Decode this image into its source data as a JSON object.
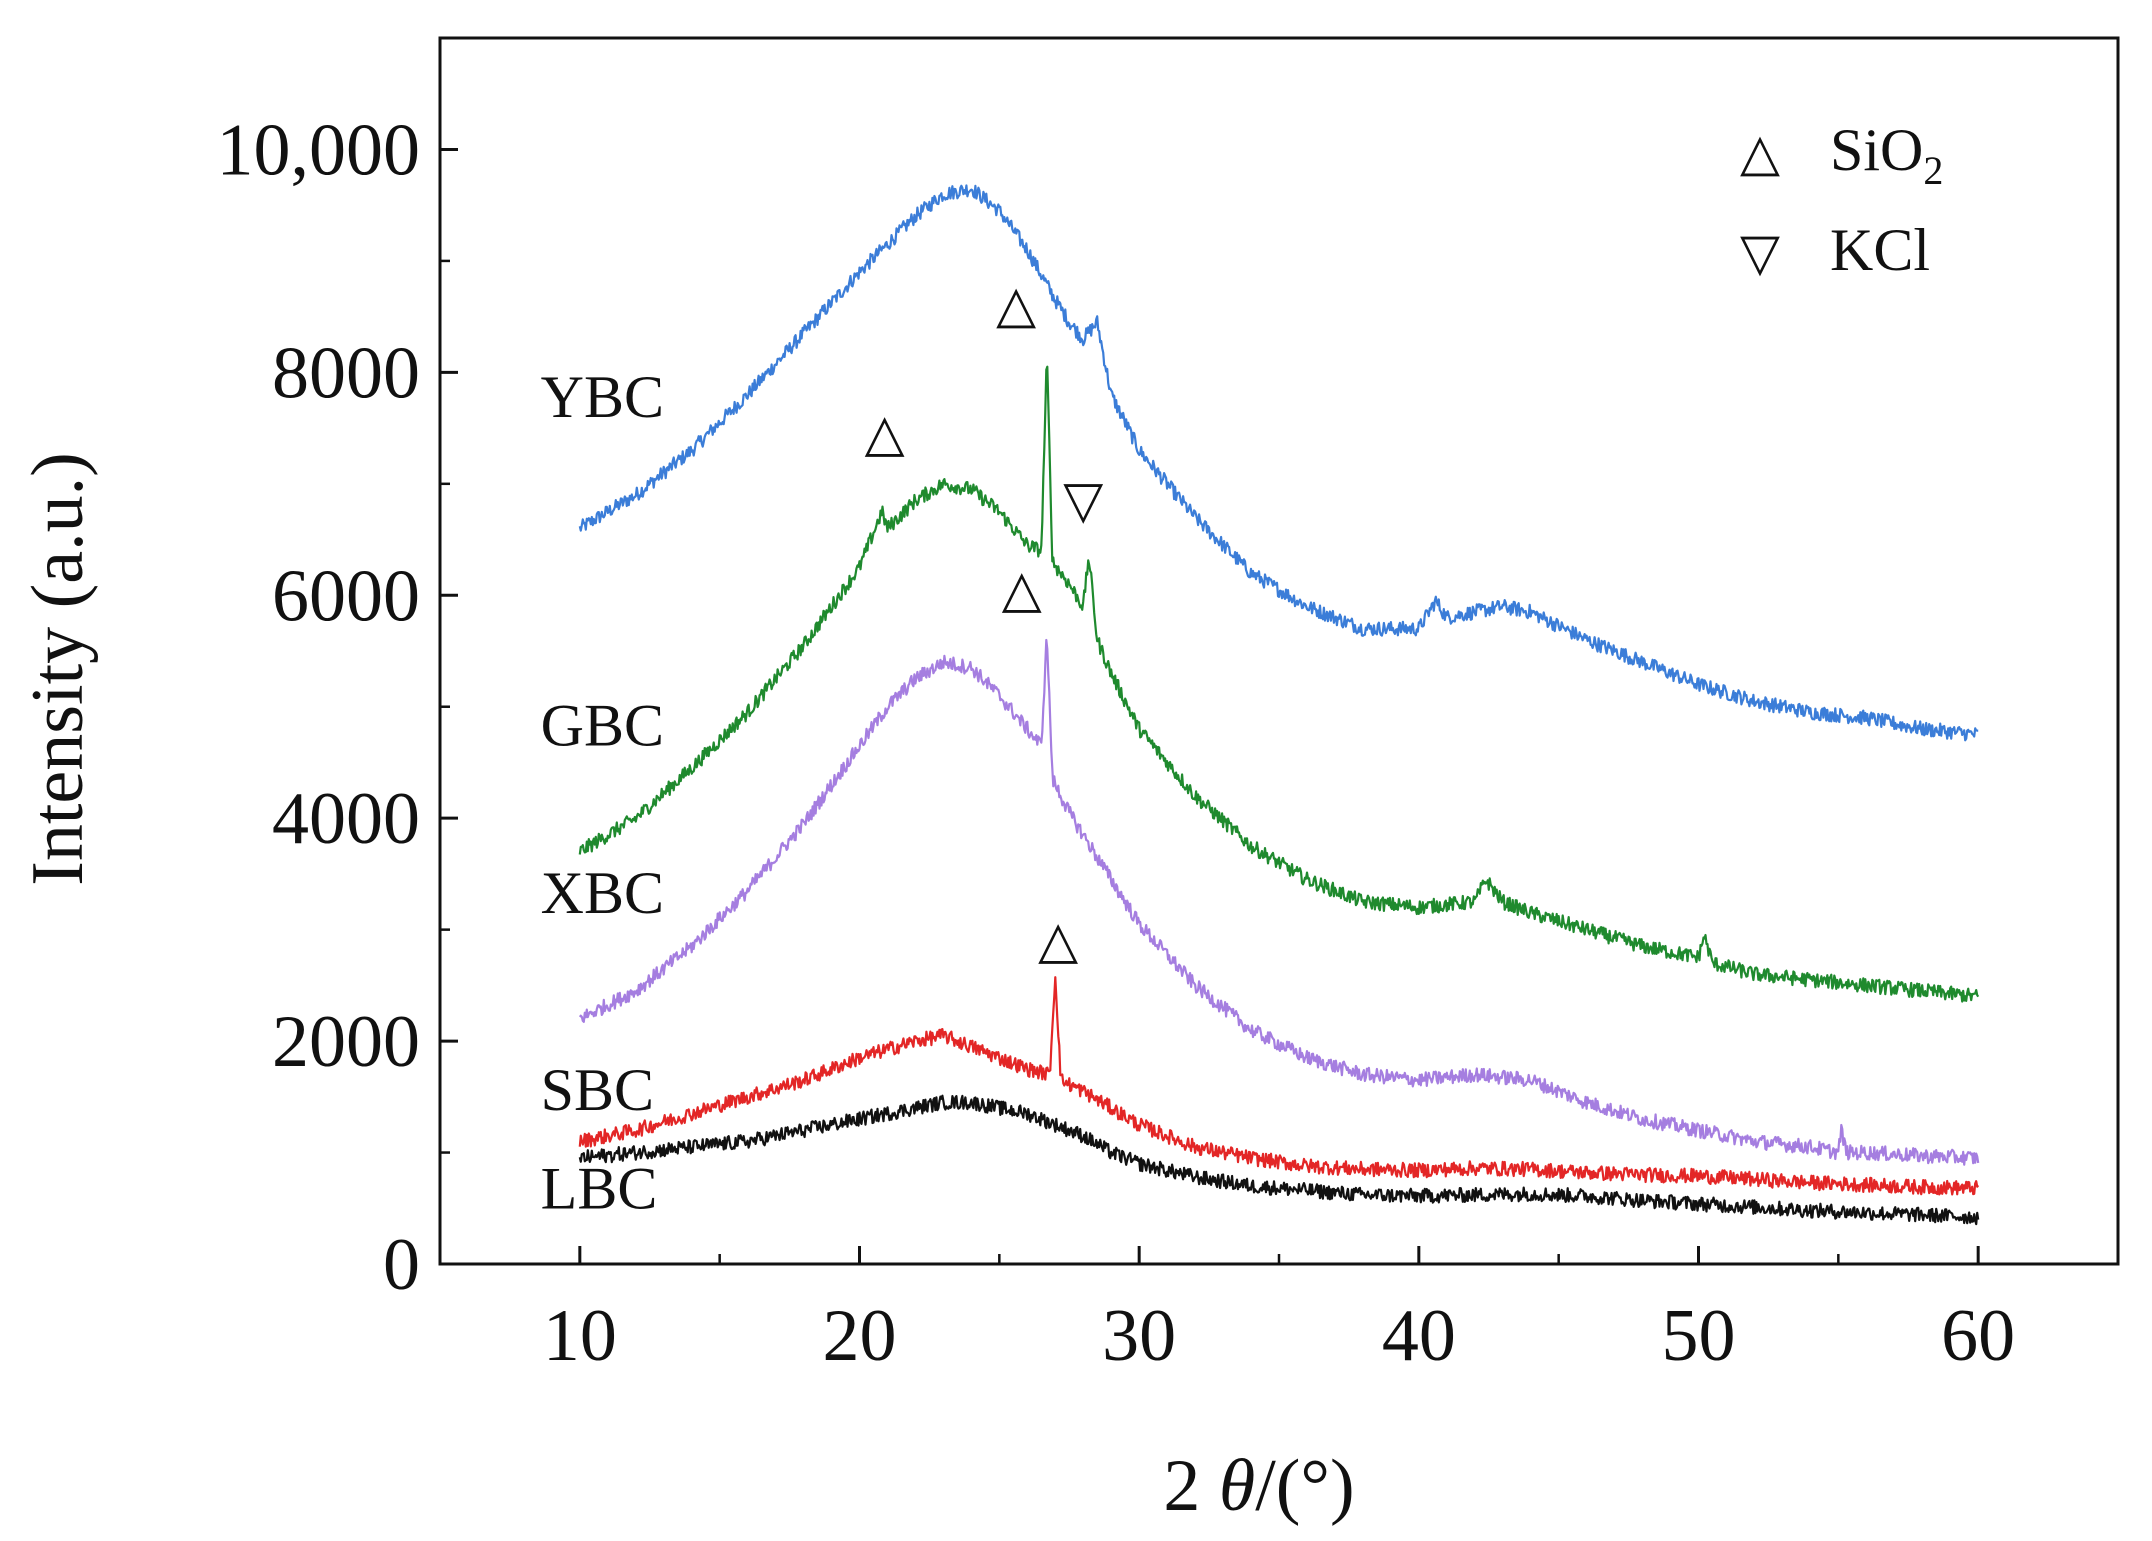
{
  "chart_data": {
    "type": "line",
    "title": "",
    "xlabel": "2θ/(°)",
    "xlabel_parts": {
      "prefix": "2",
      "theta": "θ",
      "suffix": "/(°)"
    },
    "ylabel": "Intensity (a.u.)",
    "xlim": [
      5,
      65
    ],
    "ylim": [
      0,
      11000
    ],
    "xticks": [
      10,
      20,
      30,
      40,
      50,
      60
    ],
    "xtick_labels": [
      "10",
      "20",
      "30",
      "40",
      "50",
      "60"
    ],
    "yticks": [
      0,
      2000,
      4000,
      6000,
      8000,
      10000
    ],
    "ytick_labels": [
      "0",
      "2000",
      "4000",
      "6000",
      "8000",
      "10,000"
    ],
    "grid": false,
    "legend": {
      "position": "top-right",
      "entries": [
        {
          "symbol": "△",
          "label": "SiO",
          "subscript": "2"
        },
        {
          "symbol": "▽",
          "label": "KCl",
          "subscript": ""
        }
      ]
    },
    "series": [
      {
        "name": "YBC",
        "color": "#3b7dd8",
        "x": [
          10,
          12,
          14,
          16,
          18,
          20,
          22,
          23,
          24,
          25,
          26,
          27,
          27.5,
          28,
          28.5,
          29,
          30,
          32,
          34,
          36,
          38,
          40,
          40.6,
          41,
          42,
          43,
          44,
          46,
          48,
          50,
          52,
          54,
          56,
          58,
          60
        ],
        "y": [
          6600,
          6900,
          7300,
          7800,
          8350,
          8900,
          9400,
          9600,
          9650,
          9450,
          9100,
          8650,
          8450,
          8300,
          8450,
          7800,
          7300,
          6700,
          6200,
          5900,
          5700,
          5700,
          5950,
          5800,
          5850,
          5900,
          5850,
          5600,
          5400,
          5200,
          5050,
          4950,
          4900,
          4800,
          4750
        ]
      },
      {
        "name": "GBC",
        "color": "#1f8a2e",
        "x": [
          10,
          12,
          14,
          16,
          18,
          20,
          20.8,
          21,
          22,
          23,
          24,
          25,
          26,
          26.5,
          26.7,
          26.9,
          27.5,
          28,
          28.2,
          28.5,
          29,
          30,
          32,
          34,
          36,
          38,
          40,
          42,
          42.4,
          43,
          44,
          46,
          48,
          50,
          50.2,
          50.5,
          52,
          54,
          56,
          58,
          60
        ],
        "y": [
          3700,
          4000,
          4450,
          4950,
          5550,
          6250,
          6750,
          6600,
          6850,
          7000,
          6950,
          6750,
          6450,
          6400,
          8150,
          6300,
          6100,
          5900,
          6350,
          5600,
          5300,
          4800,
          4200,
          3750,
          3450,
          3250,
          3200,
          3250,
          3450,
          3250,
          3150,
          3000,
          2850,
          2750,
          2950,
          2700,
          2600,
          2550,
          2500,
          2450,
          2400
        ]
      },
      {
        "name": "XBC",
        "color": "#a57ee0",
        "x": [
          10,
          12,
          14,
          16,
          18,
          20,
          21,
          22,
          23,
          24,
          25,
          26,
          26.5,
          26.7,
          26.9,
          27.5,
          28,
          29,
          30,
          32,
          34,
          36,
          38,
          40,
          42,
          44,
          46,
          48,
          50,
          52,
          54,
          55,
          55.1,
          55.3,
          56,
          58,
          60
        ],
        "y": [
          2200,
          2450,
          2850,
          3350,
          3950,
          4650,
          5000,
          5250,
          5400,
          5350,
          5100,
          4800,
          4650,
          5650,
          4350,
          4050,
          3850,
          3450,
          3050,
          2500,
          2100,
          1850,
          1700,
          1650,
          1700,
          1650,
          1450,
          1300,
          1200,
          1100,
          1050,
          1000,
          1200,
          1000,
          1000,
          970,
          950
        ]
      },
      {
        "name": "SBC",
        "color": "#e32626",
        "x": [
          10,
          12,
          14,
          16,
          18,
          20,
          22,
          23,
          24,
          25,
          26,
          26.8,
          27,
          27.2,
          28,
          29,
          30,
          32,
          34,
          36,
          38,
          40,
          42,
          44,
          46,
          48,
          50,
          52,
          54,
          56,
          58,
          60
        ],
        "y": [
          1100,
          1200,
          1350,
          1500,
          1650,
          1850,
          2000,
          2050,
          1950,
          1850,
          1750,
          1700,
          2600,
          1650,
          1550,
          1400,
          1250,
          1050,
          950,
          880,
          850,
          840,
          860,
          850,
          820,
          800,
          790,
          760,
          730,
          710,
          690,
          680
        ]
      },
      {
        "name": "LBC",
        "color": "#111111",
        "x": [
          10,
          12,
          14,
          16,
          18,
          20,
          22,
          23,
          24,
          25,
          26,
          27,
          28,
          29,
          30,
          32,
          34,
          36,
          38,
          40,
          42,
          44,
          46,
          48,
          50,
          52,
          54,
          56,
          58,
          60
        ],
        "y": [
          950,
          1000,
          1050,
          1100,
          1200,
          1300,
          1400,
          1450,
          1450,
          1400,
          1350,
          1250,
          1150,
          1000,
          900,
          780,
          700,
          660,
          620,
          610,
          620,
          630,
          610,
          570,
          540,
          510,
          480,
          460,
          440,
          420
        ]
      }
    ],
    "series_labels": [
      {
        "text": "YBC",
        "series": "YBC",
        "x": 8.6,
        "y": 7600
      },
      {
        "text": "GBC",
        "series": "GBC",
        "x": 8.6,
        "y": 4650
      },
      {
        "text": "XBC",
        "series": "XBC",
        "x": 8.6,
        "y": 3150
      },
      {
        "text": "SBC",
        "series": "SBC",
        "x": 8.6,
        "y": 1380
      },
      {
        "text": "LBC",
        "series": "LBC",
        "x": 8.6,
        "y": 500
      }
    ],
    "annotations": [
      {
        "symbol": "△",
        "phase": "SiO2",
        "x": 20.9,
        "y": 7300
      },
      {
        "symbol": "△",
        "phase": "SiO2",
        "x": 25.6,
        "y": 8450
      },
      {
        "symbol": "▽",
        "phase": "KCl",
        "x": 28.0,
        "y": 6700
      },
      {
        "symbol": "△",
        "phase": "SiO2",
        "x": 25.8,
        "y": 5900
      },
      {
        "symbol": "△",
        "phase": "SiO2",
        "x": 27.1,
        "y": 2750
      }
    ]
  }
}
